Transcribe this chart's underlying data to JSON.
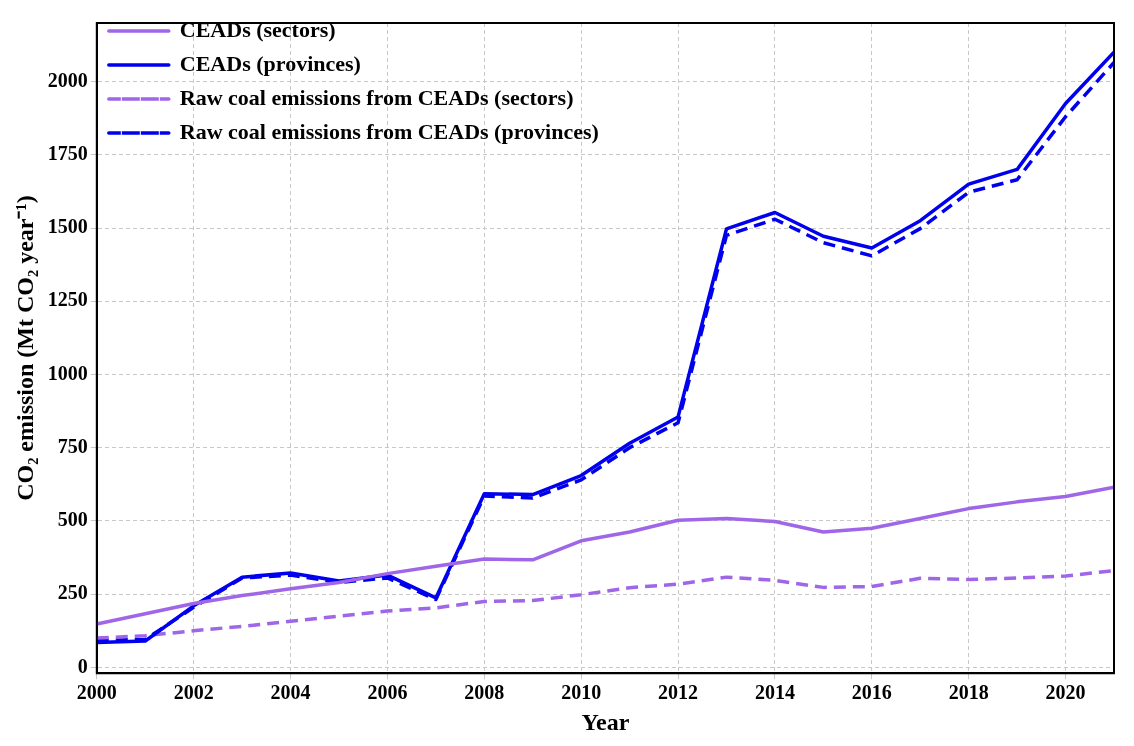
{
  "chart_data": {
    "type": "line",
    "xlabel": "Year",
    "ylabel": "CO₂ emission (Mt CO₂ year⁻¹)",
    "x": [
      2000,
      2001,
      2002,
      2003,
      2004,
      2005,
      2006,
      2007,
      2008,
      2009,
      2010,
      2011,
      2012,
      2013,
      2014,
      2015,
      2016,
      2017,
      2018,
      2019,
      2020,
      2021
    ],
    "series": [
      {
        "name": "CEADs (sectors)",
        "color": "#a066e8",
        "line_style": "solid",
        "values": [
          148,
          183,
          218,
          245,
          268,
          290,
          320,
          345,
          370,
          367,
          432,
          462,
          502,
          508,
          498,
          462,
          475,
          508,
          542,
          565,
          583,
          615
        ]
      },
      {
        "name": "CEADs (provinces)",
        "color": "#0000ee",
        "line_style": "solid",
        "values": [
          85,
          90,
          210,
          308,
          322,
          295,
          315,
          237,
          593,
          590,
          655,
          765,
          855,
          1497,
          1553,
          1472,
          1432,
          1525,
          1650,
          1700,
          1925,
          2100
        ]
      },
      {
        "name": "Raw coal emissions from CEADs (sectors)",
        "color": "#a066e8",
        "line_style": "dashed",
        "values": [
          100,
          108,
          125,
          140,
          157,
          175,
          192,
          203,
          225,
          228,
          248,
          272,
          284,
          308,
          297,
          273,
          276,
          304,
          300,
          305,
          312,
          330
        ]
      },
      {
        "name": "Raw coal emissions from CEADs (provinces)",
        "color": "#0000ee",
        "line_style": "dashed",
        "values": [
          92,
          95,
          205,
          305,
          315,
          290,
          305,
          232,
          585,
          578,
          640,
          750,
          835,
          1475,
          1530,
          1450,
          1405,
          1498,
          1622,
          1665,
          1880,
          2065
        ]
      }
    ],
    "xlim": [
      2000,
      2021
    ],
    "xticks": [
      2000,
      2002,
      2004,
      2006,
      2008,
      2010,
      2012,
      2014,
      2016,
      2018,
      2020
    ],
    "ylim": [
      -20,
      2200
    ],
    "yticks": [
      0,
      250,
      500,
      750,
      1000,
      1250,
      1500,
      1750,
      2000
    ],
    "grid": true,
    "legend": "top left",
    "marker": "none"
  }
}
